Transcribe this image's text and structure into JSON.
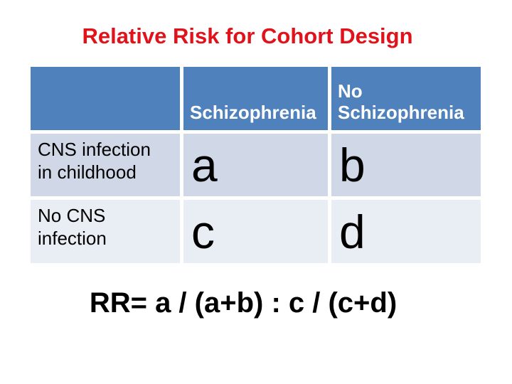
{
  "slide": {
    "title": "Relative Risk for Cohort Design",
    "formula": "RR= a / (a+b) : c / (c+d)"
  },
  "table": {
    "header": [
      "",
      "Schizophrenia",
      "No\nSchizophrenia"
    ],
    "rows": [
      {
        "label": "CNS infection\nin childhood",
        "cells": [
          "a",
          "b"
        ]
      },
      {
        "label": "No CNS\ninfection",
        "cells": [
          "c",
          "d"
        ]
      }
    ]
  },
  "colors": {
    "title_red": "#e2121b",
    "header_blue": "#4f81bd",
    "row_band_dark": "#d0d8e8",
    "row_band_light": "#e9edf4",
    "header_text": "#ffffff",
    "body_text": "#000000",
    "background": "#ffffff"
  }
}
